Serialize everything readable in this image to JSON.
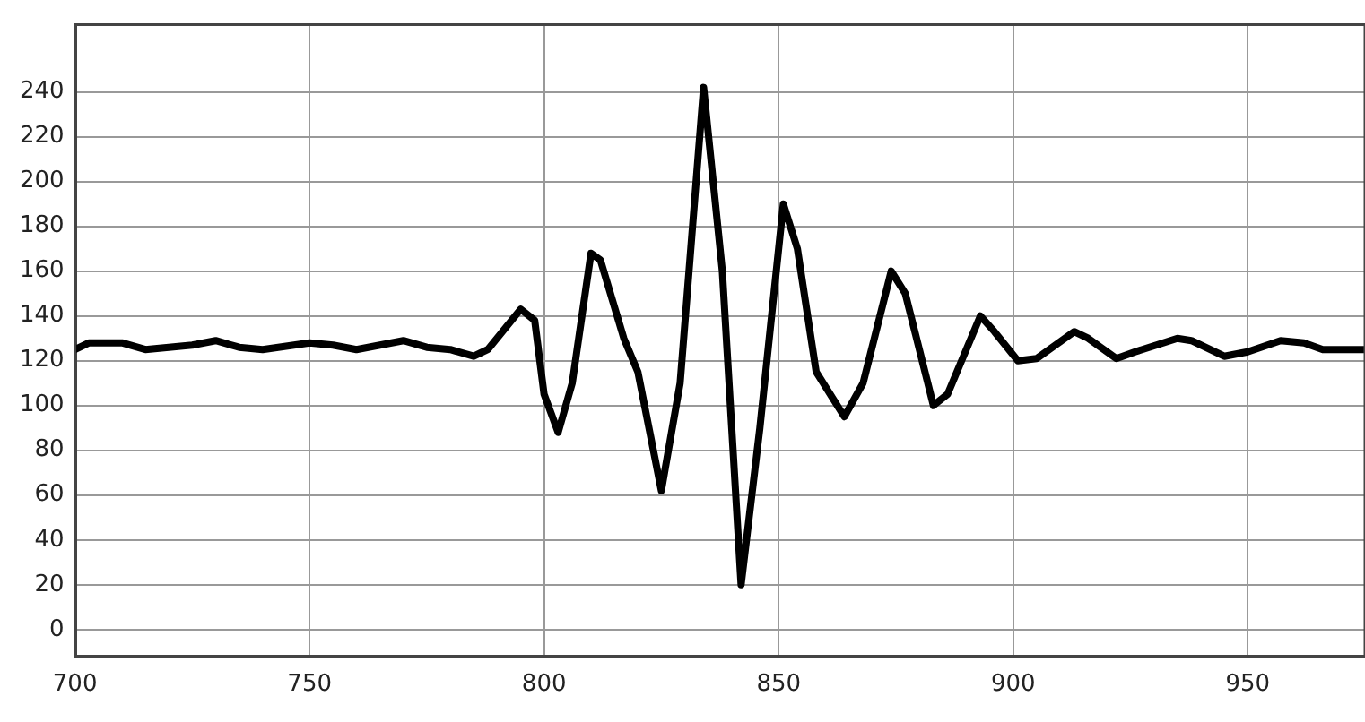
{
  "chart_data": {
    "type": "line",
    "x": [
      700,
      703,
      710,
      715,
      725,
      730,
      735,
      740,
      750,
      755,
      760,
      765,
      770,
      775,
      780,
      785,
      788,
      795,
      798,
      800,
      803,
      806,
      810,
      812,
      817,
      820,
      825,
      829,
      834,
      838,
      842,
      846,
      851,
      854,
      858,
      864,
      868,
      874,
      877,
      883,
      886,
      893,
      896,
      901,
      905,
      913,
      916,
      922,
      926,
      935,
      938,
      945,
      950,
      957,
      962,
      966,
      975
    ],
    "series": [
      {
        "color": "#000000",
        "values": [
          125,
          128,
          128,
          125,
          127,
          129,
          126,
          125,
          128,
          127,
          125,
          127,
          129,
          126,
          125,
          122,
          125,
          143,
          138,
          105,
          88,
          110,
          168,
          165,
          130,
          115,
          62,
          110,
          242,
          160,
          20,
          90,
          190,
          170,
          115,
          95,
          110,
          160,
          150,
          100,
          105,
          140,
          133,
          120,
          121,
          133,
          130,
          121,
          124,
          130,
          129,
          122,
          124,
          129,
          128,
          125,
          125
        ]
      }
    ],
    "xlim": [
      700,
      975
    ],
    "xticks": [
      700,
      750,
      800,
      850,
      900,
      950
    ],
    "ylim": [
      -12,
      270
    ],
    "yticks": [
      0,
      20,
      40,
      60,
      80,
      100,
      120,
      140,
      160,
      180,
      200,
      220,
      240
    ],
    "grid": true,
    "legend": false,
    "marker": "none",
    "line_style": "solid"
  }
}
